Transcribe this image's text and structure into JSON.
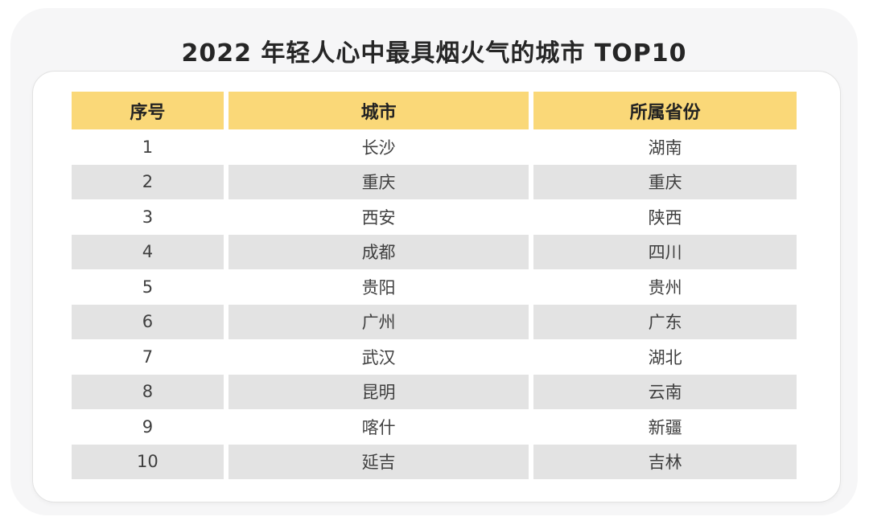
{
  "page": {
    "title": "2022 年轻人心中最具烟火气的城市 TOP10"
  },
  "colors": {
    "header_bg": "#FAD878",
    "row_alt_bg": "#E3E3E3",
    "panel_bg": "#F6F6F7",
    "card_bg": "#FFFFFF",
    "title_color": "#262626",
    "body_text": "#3F3F3F"
  },
  "table": {
    "columns": [
      {
        "key": "index",
        "label": "序号"
      },
      {
        "key": "city",
        "label": "城市"
      },
      {
        "key": "province",
        "label": "所属省份"
      }
    ],
    "rows": [
      {
        "index": "1",
        "city": "长沙",
        "province": "湖南"
      },
      {
        "index": "2",
        "city": "重庆",
        "province": "重庆"
      },
      {
        "index": "3",
        "city": "西安",
        "province": "陕西"
      },
      {
        "index": "4",
        "city": "成都",
        "province": "四川"
      },
      {
        "index": "5",
        "city": "贵阳",
        "province": "贵州"
      },
      {
        "index": "6",
        "city": "广州",
        "province": "广东"
      },
      {
        "index": "7",
        "city": "武汉",
        "province": "湖北"
      },
      {
        "index": "8",
        "city": "昆明",
        "province": "云南"
      },
      {
        "index": "9",
        "city": "喀什",
        "province": "新疆"
      },
      {
        "index": "10",
        "city": "延吉",
        "province": "吉林"
      }
    ]
  },
  "chart_data": {
    "type": "table",
    "title": "2022 年轻人心中最具烟火气的城市 TOP10",
    "columns": [
      "序号",
      "城市",
      "所属省份"
    ],
    "rows": [
      [
        "1",
        "长沙",
        "湖南"
      ],
      [
        "2",
        "重庆",
        "重庆"
      ],
      [
        "3",
        "西安",
        "陕西"
      ],
      [
        "4",
        "成都",
        "四川"
      ],
      [
        "5",
        "贵阳",
        "贵州"
      ],
      [
        "6",
        "广州",
        "广东"
      ],
      [
        "7",
        "武汉",
        "湖北"
      ],
      [
        "8",
        "昆明",
        "云南"
      ],
      [
        "9",
        "喀什",
        "新疆"
      ],
      [
        "10",
        "延吉",
        "吉林"
      ]
    ],
    "layout": {
      "header_bg": "#FAD878",
      "zebra_stripe_bg": "#E3E3E3",
      "striped_rows": "even"
    }
  }
}
